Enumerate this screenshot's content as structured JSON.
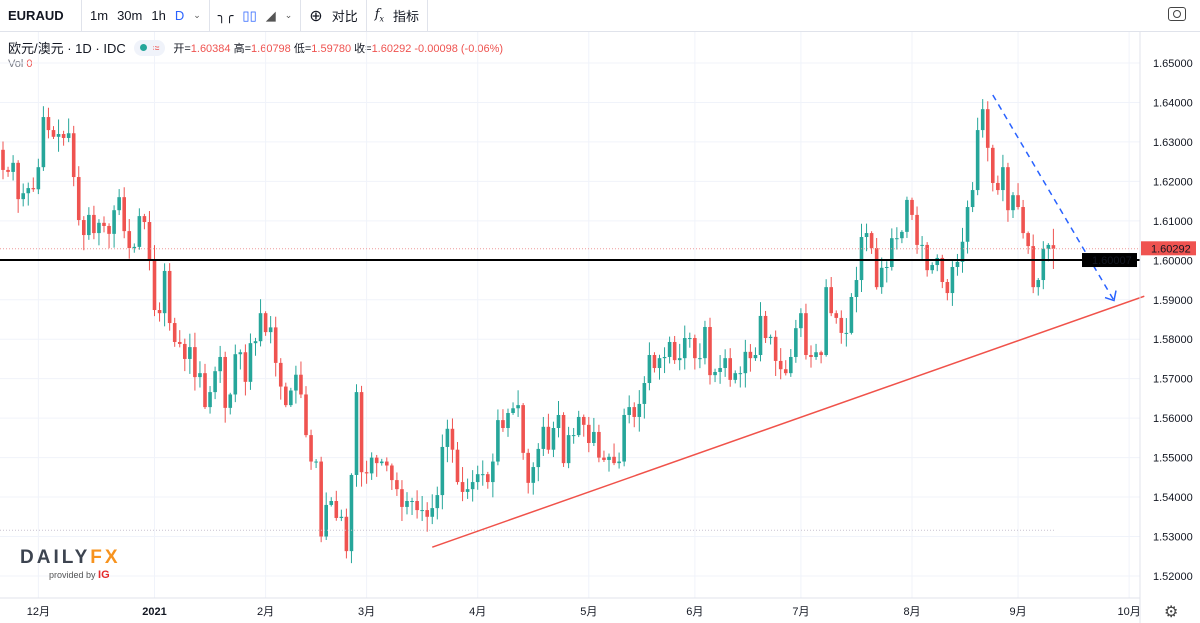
{
  "toolbar": {
    "symbol": "EURAUD",
    "intervals": [
      "1m",
      "30m",
      "1h",
      "D"
    ],
    "compare": "对比",
    "indicators": "指标"
  },
  "legend": {
    "title": "欧元/澳元 · 1D · IDC",
    "open_label": "开=",
    "open": "1.60384",
    "high_label": "高=",
    "high": "1.60798",
    "low_label": "低=",
    "low": "1.59780",
    "close_label": "收=",
    "close": "1.60292",
    "change": "-0.00098 (-0.06%)",
    "vol_label": "Vol",
    "vol": "0"
  },
  "logo": {
    "brand": "DAILYFX",
    "provided": "provided by",
    "ig": "IG"
  },
  "colors": {
    "up": "#26a69a",
    "down": "#ef5350",
    "trend": "#f0524a",
    "arrow": "#2962ff"
  },
  "chart_data": {
    "type": "candlestick",
    "ylim": [
      1.515,
      1.655
    ],
    "yticks": [
      "1.65000",
      "1.64000",
      "1.63000",
      "1.62000",
      "1.61000",
      "1.60000",
      "1.59000",
      "1.58000",
      "1.57000",
      "1.56000",
      "1.55000",
      "1.54000",
      "1.53000",
      "1.52000"
    ],
    "xticks": [
      {
        "label": "12月",
        "index": 7
      },
      {
        "label": "2021",
        "index": 30
      },
      {
        "label": "2月",
        "index": 52
      },
      {
        "label": "3月",
        "index": 72
      },
      {
        "label": "4月",
        "index": 94
      },
      {
        "label": "5月",
        "index": 116
      },
      {
        "label": "6月",
        "index": 137
      },
      {
        "label": "7月",
        "index": 158
      },
      {
        "label": "8月",
        "index": 180
      },
      {
        "label": "9月",
        "index": 201
      },
      {
        "label": "10月",
        "index": 223
      }
    ],
    "first_open": 1.628,
    "close": [
      1.6229,
      1.6224,
      1.6247,
      1.6155,
      1.617,
      1.6183,
      1.618,
      1.6236,
      1.6363,
      1.633,
      1.6313,
      1.632,
      1.631,
      1.6322,
      1.6211,
      1.6102,
      1.6064,
      1.6115,
      1.6069,
      1.6095,
      1.6087,
      1.6067,
      1.6127,
      1.616,
      1.6074,
      1.6031,
      1.6034,
      1.6112,
      1.6097,
      1.6001,
      1.5874,
      1.5866,
      1.5973,
      1.5841,
      1.5793,
      1.5788,
      1.575,
      1.578,
      1.5704,
      1.5714,
      1.5628,
      1.5666,
      1.5719,
      1.5755,
      1.5626,
      1.566,
      1.5762,
      1.5767,
      1.5692,
      1.579,
      1.5795,
      1.5866,
      1.5818,
      1.583,
      1.574,
      1.568,
      1.5633,
      1.567,
      1.571,
      1.566,
      1.5557,
      1.549,
      1.549,
      1.53,
      1.538,
      1.539,
      1.5347,
      1.535,
      1.5263,
      1.5456,
      1.5666,
      1.5463,
      1.546,
      1.55,
      1.5486,
      1.549,
      1.548,
      1.5443,
      1.542,
      1.5375,
      1.539,
      1.539,
      1.5367,
      1.5367,
      1.535,
      1.5372,
      1.5405,
      1.5527,
      1.5573,
      1.552,
      1.5438,
      1.5413,
      1.542,
      1.5438,
      1.5458,
      1.5458,
      1.5438,
      1.549,
      1.5595,
      1.5575,
      1.5613,
      1.5625,
      1.5633,
      1.5512,
      1.5436,
      1.5476,
      1.5522,
      1.5578,
      1.552,
      1.5575,
      1.5608,
      1.5486,
      1.5557,
      1.5557,
      1.5603,
      1.5583,
      1.5537,
      1.5565,
      1.55,
      1.5494,
      1.5502,
      1.5486,
      1.549,
      1.5608,
      1.5628,
      1.5603,
      1.5636,
      1.5689,
      1.576,
      1.5727,
      1.5752,
      1.5755,
      1.5793,
      1.5747,
      1.5752,
      1.5803,
      1.5803,
      1.5752,
      1.5752,
      1.5831,
      1.5709,
      1.5717,
      1.5727,
      1.5752,
      1.5697,
      1.5714,
      1.5714,
      1.5768,
      1.5752,
      1.576,
      1.5859,
      1.5803,
      1.5806,
      1.5745,
      1.5724,
      1.5714,
      1.5755,
      1.5828,
      1.5866,
      1.576,
      1.5755,
      1.5767,
      1.576,
      1.5932,
      1.5866,
      1.5854,
      1.5816,
      1.5816,
      1.5907,
      1.595,
      1.6059,
      1.6069,
      1.6031,
      1.5932,
      1.5981,
      1.5983,
      1.6056,
      1.6056,
      1.6072,
      1.6153,
      1.6115,
      1.6039,
      1.6039,
      1.5975,
      1.5988,
      1.6006,
      1.5945,
      1.5917,
      1.5983,
      1.5996,
      1.6047,
      1.6135,
      1.6178,
      1.633,
      1.6383,
      1.6285,
      1.6196,
      1.6178,
      1.6236,
      1.6127,
      1.6165,
      1.6135,
      1.6069,
      1.6036,
      1.5932,
      1.595,
      1.6029,
      1.6039,
      1.60292
    ],
    "last_candle": {
      "open": 1.60384,
      "high": 1.60798,
      "low": 1.5978,
      "close": 1.60292
    },
    "horizontal_line": 1.60007,
    "horizontal_line_label": "1.60007",
    "last_price_label": "1.60292",
    "low_price_line": 1.5316,
    "trendline": {
      "from": {
        "index": 85,
        "price": 1.5273
      },
      "to": {
        "index": 226,
        "price": 1.5909
      }
    },
    "arrow": {
      "from": {
        "index": 196,
        "price": 1.6419
      },
      "to": {
        "index": 220,
        "price": 1.5898
      }
    }
  }
}
